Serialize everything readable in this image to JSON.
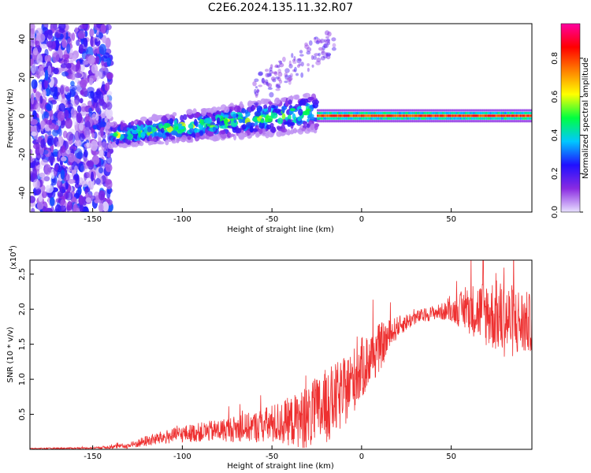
{
  "title": "C2E6.2024.135.11.32.R07",
  "chart_data": [
    {
      "type": "heatmap",
      "name": "spectrogram",
      "xlabel": "Height of straight line (km)",
      "ylabel": "Frequency (Hz)",
      "xlim": [
        -185,
        95
      ],
      "ylim": [
        -50,
        48
      ],
      "xticks": [
        -150,
        -100,
        -50,
        0,
        50
      ],
      "yticks": [
        -40,
        -20,
        0,
        20,
        40
      ],
      "colorbar": {
        "label": "Normalized spectral amplitude",
        "range": [
          0.0,
          0.98
        ],
        "ticks": [
          0.0,
          0.2,
          0.4,
          0.6,
          0.8
        ],
        "colors": [
          "#e8e0ff",
          "#8a2be2",
          "#2010ff",
          "#00c8ff",
          "#00ff40",
          "#ffff00",
          "#ff8000",
          "#ff0000",
          "#ff00a0"
        ]
      },
      "features": [
        {
          "region": "noise",
          "x": [
            -185,
            -140
          ],
          "y": [
            -50,
            48
          ],
          "amplitude": 0.15
        },
        {
          "region": "rising-band",
          "x": [
            -140,
            -25
          ],
          "center_freq": [
            -10,
            2
          ],
          "amplitude": 0.5
        },
        {
          "region": "steady-band",
          "x": [
            -25,
            95
          ],
          "center_freq": 0,
          "amplitude": 0.9
        }
      ]
    },
    {
      "type": "line",
      "name": "snr",
      "xlabel": "Height of straight line (km)",
      "ylabel": "SNR (10 * v/v)",
      "scale_label": "(x10",
      "scale_exp": "4",
      "scale_close": ")",
      "xlim": [
        -185,
        95
      ],
      "ylim": [
        0,
        2.7
      ],
      "xticks": [
        -150,
        -100,
        -50,
        0,
        50
      ],
      "yticks": [
        0.5,
        1.0,
        1.5,
        2.0,
        2.5
      ],
      "ytick_labels": [
        "0.5",
        "1.0",
        "1.5",
        "2.0",
        "2.5"
      ],
      "color": "#ee3030",
      "envelope": {
        "x": [
          -185,
          -150,
          -130,
          -120,
          -100,
          -80,
          -60,
          -40,
          -30,
          -20,
          -10,
          0,
          10,
          20,
          30,
          40,
          50,
          60,
          70,
          80,
          90,
          95
        ],
        "mean": [
          0.01,
          0.02,
          0.05,
          0.12,
          0.22,
          0.27,
          0.32,
          0.4,
          0.45,
          0.6,
          0.8,
          1.15,
          1.45,
          1.75,
          1.88,
          1.95,
          1.98,
          2.0,
          1.95,
          1.85,
          1.8,
          1.8
        ],
        "spread": [
          0.01,
          0.01,
          0.04,
          0.08,
          0.12,
          0.16,
          0.22,
          0.35,
          0.45,
          0.55,
          0.5,
          0.45,
          0.35,
          0.15,
          0.1,
          0.1,
          0.15,
          0.35,
          0.5,
          0.55,
          0.5,
          0.4
        ]
      }
    }
  ]
}
